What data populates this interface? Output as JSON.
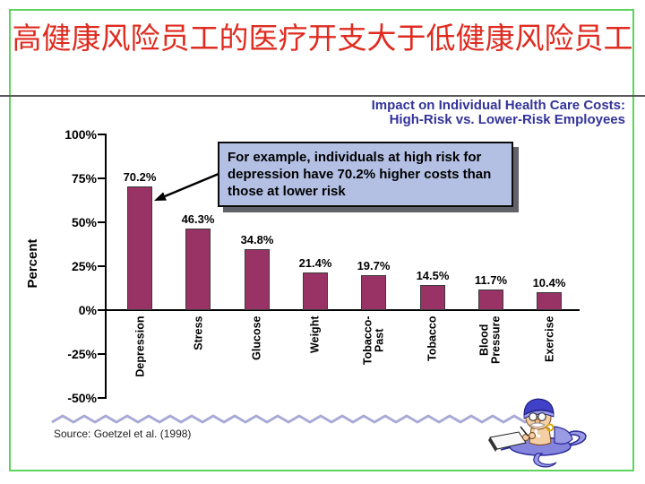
{
  "slide": {
    "title": "高健康风险员工的医疗开支大于低健康风险员工",
    "title_color": "#df2b20",
    "border_color": "#5dd55d"
  },
  "chart_data": {
    "type": "bar",
    "title_line1": "Impact on Individual Health Care Costs:",
    "title_line2": "High-Risk vs. Lower-Risk Employees",
    "title_color": "#333399",
    "ylabel": "Percent",
    "categories": [
      "Depression",
      "Stress",
      "Glucose",
      "Weight",
      "Tobacco-\nPast",
      "Tobacco",
      "Blood\nPressure",
      "Exercise"
    ],
    "values": [
      70.2,
      46.3,
      34.8,
      21.4,
      19.7,
      14.5,
      11.7,
      10.4
    ],
    "value_labels": [
      "70.2%",
      "46.3%",
      "34.8%",
      "21.4%",
      "19.7%",
      "14.5%",
      "11.7%",
      "10.4%"
    ],
    "y_tick_labels": [
      "100%",
      "75%",
      "50%",
      "25%",
      "0%",
      "-25%",
      "-50%"
    ],
    "y_tick_values": [
      100,
      75,
      50,
      25,
      0,
      -25,
      -50
    ],
    "ylim": [
      -50,
      100
    ],
    "bar_color": "#993366",
    "grid": false,
    "legend": false
  },
  "annotation": {
    "text": "For example, individuals at high risk for depression have 70.2% higher costs than those at lower risk",
    "fill_color": "#b3c0e3"
  },
  "source": {
    "text": "Source: Goetzel et al. (1998)"
  },
  "decor": {
    "mascot_icon": "genie-writing-cartoon",
    "divider_icon": "wavy-line",
    "wave_color": "#a9a9d6"
  }
}
